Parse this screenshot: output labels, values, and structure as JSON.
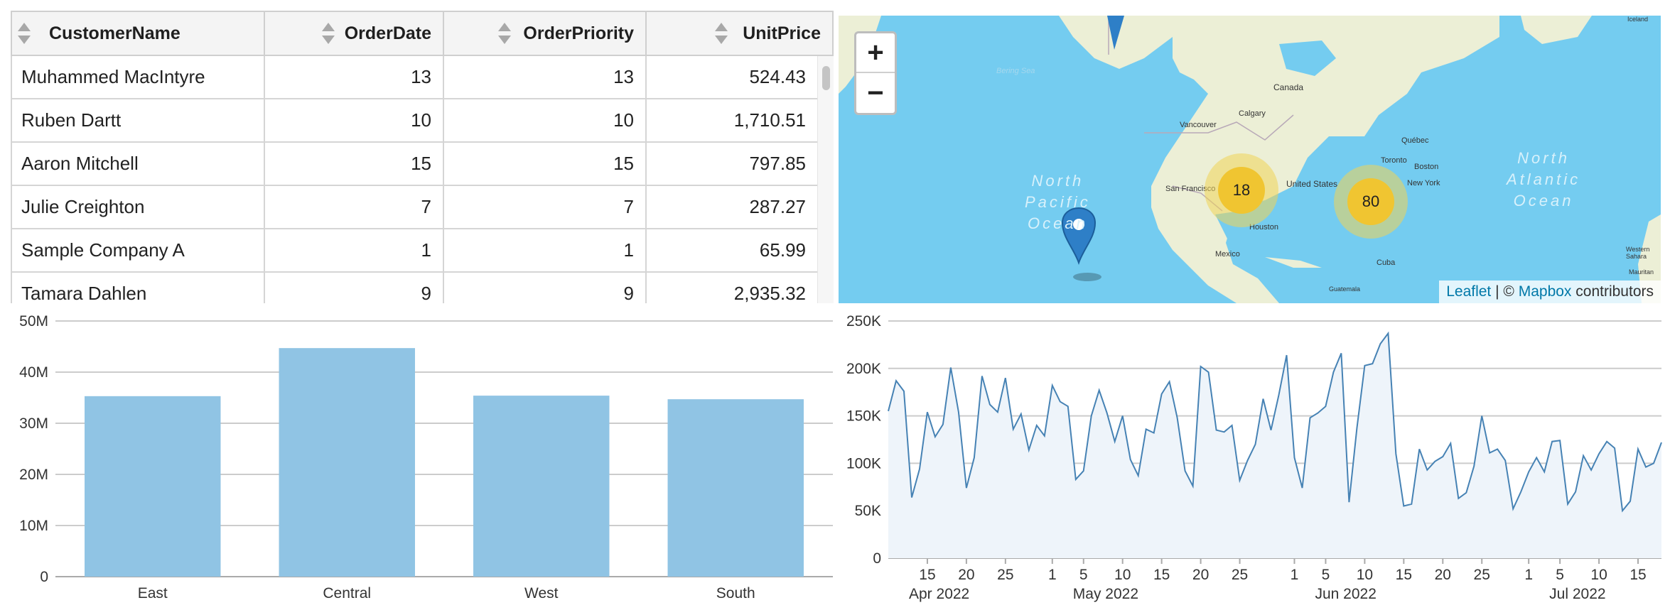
{
  "table": {
    "columns": [
      "CustomerName",
      "OrderDate",
      "OrderPriority",
      "UnitPrice"
    ],
    "rows": [
      [
        "Muhammed MacIntyre",
        "13",
        "13",
        "524.43"
      ],
      [
        "Ruben Dartt",
        "10",
        "10",
        "1,710.51"
      ],
      [
        "Aaron Mitchell",
        "15",
        "15",
        "797.85"
      ],
      [
        "Julie Creighton",
        "7",
        "7",
        "287.27"
      ],
      [
        "Sample Company A",
        "1",
        "1",
        "65.99"
      ],
      [
        "Tamara Dahlen",
        "9",
        "9",
        "2,935.32"
      ]
    ]
  },
  "map": {
    "zoom_in": "+",
    "zoom_out": "−",
    "clusters": [
      {
        "label": "18"
      },
      {
        "label": "80"
      }
    ],
    "ocean_labels": [
      "North\nPacific\nOcean",
      "North\nAtlantic\nOcean"
    ],
    "place_labels": [
      "Canada",
      "Calgary",
      "Vancouver",
      "United States",
      "San Francisco",
      "Houston",
      "Mexico",
      "Québec",
      "Toronto",
      "Boston",
      "New York",
      "Cuba",
      "Guatemala",
      "Bering Sea",
      "Iceland",
      "Western Sahara",
      "Mauritan"
    ],
    "attribution": {
      "leaflet": "Leaflet",
      "sep": " | © ",
      "mapbox": "Mapbox",
      "rest": " contributors"
    },
    "colors": {
      "water": "#74ccf0",
      "land": "#ecefd6",
      "cluster": "#f0c531",
      "marker": "#2e7fc7"
    }
  },
  "chart_data": [
    {
      "type": "bar",
      "categories": [
        "East",
        "Central",
        "West",
        "South"
      ],
      "values": [
        35300000,
        44700000,
        35400000,
        34700000
      ],
      "ylim": [
        0,
        50000000
      ],
      "yticks": [
        "0",
        "10M",
        "20M",
        "30M",
        "40M",
        "50M"
      ],
      "color": "#90c4e4",
      "grid": true
    },
    {
      "type": "area",
      "x_start": "2022-04-10",
      "values": [
        155000,
        187000,
        176000,
        64000,
        94000,
        154000,
        128000,
        141000,
        201000,
        154000,
        74000,
        106000,
        192000,
        162000,
        154000,
        190000,
        136000,
        152000,
        114000,
        140000,
        129000,
        182000,
        165000,
        160000,
        83000,
        92000,
        150000,
        177000,
        153000,
        123000,
        150000,
        104000,
        87000,
        136000,
        132000,
        173000,
        186000,
        148000,
        92000,
        76000,
        202000,
        196000,
        135000,
        133000,
        140000,
        82000,
        103000,
        120000,
        168000,
        135000,
        172000,
        214000,
        106000,
        74000,
        148000,
        153000,
        160000,
        196000,
        216000,
        59000,
        137000,
        203000,
        205000,
        226000,
        237000,
        110000,
        55000,
        57000,
        115000,
        93000,
        102000,
        107000,
        121000,
        63000,
        69000,
        97000,
        150000,
        111000,
        115000,
        103000,
        52000,
        70000,
        91000,
        106000,
        91000,
        123000,
        124000,
        57000,
        70000,
        108000,
        93000,
        110000,
        123000,
        116000,
        50000,
        60000,
        115000,
        96000,
        100000,
        122000
      ],
      "ylim": [
        0,
        250000
      ],
      "yticks": [
        "0",
        "50K",
        "100K",
        "150K",
        "200K",
        "250K"
      ],
      "xticks": [
        "15",
        "20",
        "25",
        "1",
        "5",
        "10",
        "15",
        "20",
        "25",
        "1",
        "5",
        "10",
        "15",
        "20",
        "25",
        "1",
        "5",
        "10",
        "15"
      ],
      "month_labels": [
        "Apr 2022",
        "May 2022",
        "Jun 2022",
        "Jul 2022"
      ],
      "color": "#4682b4",
      "fill": "#eef4fa",
      "grid": true
    }
  ]
}
